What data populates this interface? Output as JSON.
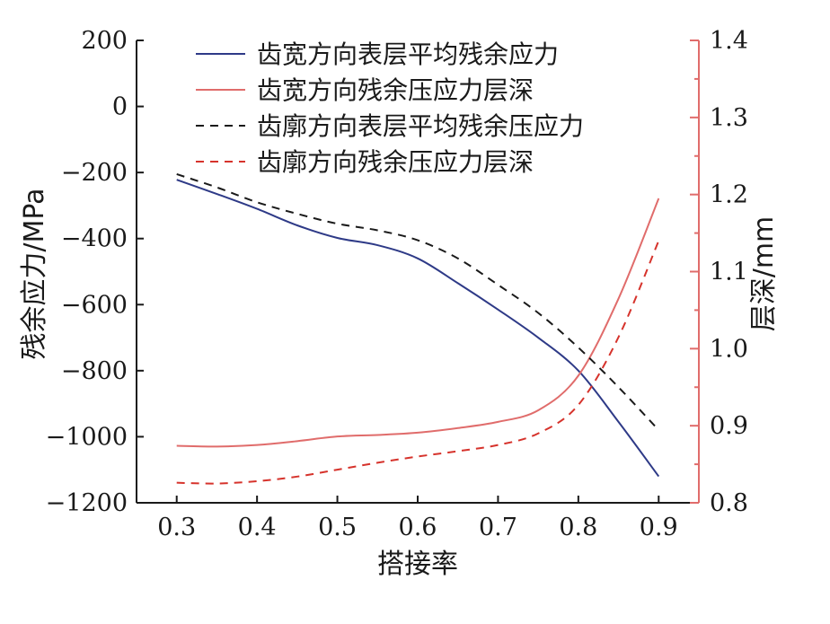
{
  "chart_data": {
    "type": "line",
    "xlabel": "搭接率",
    "ylabel_left": "残余应力/MPa",
    "ylabel_right": "层深/mm",
    "x_ticks": [
      "0.3",
      "0.4",
      "0.5",
      "0.6",
      "0.7",
      "0.8",
      "0.9"
    ],
    "y_left_ticks": [
      "200",
      "0",
      "−200",
      "−400",
      "−600",
      "−800",
      "−1000",
      "−1200"
    ],
    "y_right_ticks": [
      "0.8",
      "0.9",
      "1.0",
      "1.1",
      "1.2",
      "1.3",
      "1.4"
    ],
    "xlim": [
      0.25,
      0.95
    ],
    "ylim_left": [
      -1200,
      200
    ],
    "ylim_right": [
      0.8,
      1.4
    ],
    "legend_placement": "top",
    "grid": false,
    "colors": {
      "navy": "#2e3a87",
      "salmon": "#e06c6b",
      "black": "#1a1a1a",
      "red": "#d6332c",
      "right_axis": "#e06c6b"
    },
    "series": [
      {
        "name": "齿宽方向表层平均残余应力",
        "axis": "left",
        "color": "#2e3a87",
        "dash": "solid",
        "x": [
          0.3,
          0.35,
          0.4,
          0.45,
          0.5,
          0.55,
          0.6,
          0.65,
          0.7,
          0.75,
          0.8,
          0.85,
          0.9
        ],
        "y": [
          -222,
          -265,
          -310,
          -360,
          -398,
          -420,
          -460,
          -535,
          -615,
          -700,
          -800,
          -955,
          -1120
        ]
      },
      {
        "name": "齿宽方向残余压应力层深",
        "axis": "right",
        "color": "#e06c6b",
        "dash": "solid",
        "x": [
          0.3,
          0.35,
          0.4,
          0.45,
          0.5,
          0.55,
          0.6,
          0.65,
          0.7,
          0.75,
          0.8,
          0.85,
          0.9
        ],
        "y": [
          0.874,
          0.873,
          0.875,
          0.88,
          0.886,
          0.888,
          0.891,
          0.897,
          0.905,
          0.92,
          0.965,
          1.065,
          1.195
        ]
      },
      {
        "name": "齿廓方向表层平均残余压应力",
        "axis": "left",
        "color": "#1a1a1a",
        "dash": "dashed",
        "x": [
          0.3,
          0.35,
          0.4,
          0.45,
          0.5,
          0.55,
          0.6,
          0.65,
          0.7,
          0.75,
          0.8,
          0.85,
          0.9
        ],
        "y": [
          -205,
          -245,
          -290,
          -325,
          -355,
          -375,
          -405,
          -460,
          -540,
          -625,
          -730,
          -850,
          -980
        ]
      },
      {
        "name": "齿廓方向残余压应力层深",
        "axis": "right",
        "color": "#d6332c",
        "dash": "dashed",
        "x": [
          0.3,
          0.35,
          0.4,
          0.45,
          0.5,
          0.55,
          0.6,
          0.65,
          0.7,
          0.75,
          0.8,
          0.85,
          0.9
        ],
        "y": [
          0.826,
          0.825,
          0.828,
          0.834,
          0.843,
          0.852,
          0.86,
          0.867,
          0.875,
          0.89,
          0.927,
          1.015,
          1.14
        ]
      }
    ]
  }
}
